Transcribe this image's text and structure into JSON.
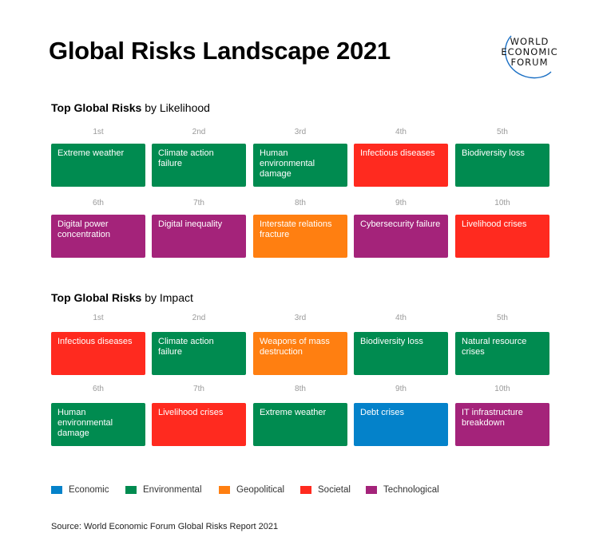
{
  "title": "Global Risks Landscape 2021",
  "logo": {
    "lines": [
      "WORLD",
      "ECONOMIC",
      "FORUM"
    ],
    "arc_color": "#1a6fc4"
  },
  "colors": {
    "Economic": "#0482CA",
    "Environmental": "#008B50",
    "Geopolitical": "#FF7F11",
    "Societal": "#FF2A1F",
    "Technological": "#A4237A"
  },
  "likelihood": {
    "heading_bold": "Top Global Risks",
    "heading_rest": " by Likelihood",
    "items": [
      {
        "rank": "1st",
        "label": "Extreme weather",
        "category": "Environmental"
      },
      {
        "rank": "2nd",
        "label": "Climate action failure",
        "category": "Environmental"
      },
      {
        "rank": "3rd",
        "label": "Human environmental damage",
        "category": "Environmental"
      },
      {
        "rank": "4th",
        "label": "Infectious diseases",
        "category": "Societal"
      },
      {
        "rank": "5th",
        "label": "Biodiversity loss",
        "category": "Environmental"
      },
      {
        "rank": "6th",
        "label": "Digital power concentration",
        "category": "Technological"
      },
      {
        "rank": "7th",
        "label": "Digital inequality",
        "category": "Technological"
      },
      {
        "rank": "8th",
        "label": "Interstate relations fracture",
        "category": "Geopolitical"
      },
      {
        "rank": "9th",
        "label": "Cybersecurity failure",
        "category": "Technological"
      },
      {
        "rank": "10th",
        "label": "Livelihood crises",
        "category": "Societal"
      }
    ]
  },
  "impact": {
    "heading_bold": "Top Global Risks",
    "heading_rest": " by Impact",
    "items": [
      {
        "rank": "1st",
        "label": "Infectious diseases",
        "category": "Societal"
      },
      {
        "rank": "2nd",
        "label": "Climate action failure",
        "category": "Environmental"
      },
      {
        "rank": "3rd",
        "label": "Weapons of mass destruction",
        "category": "Geopolitical"
      },
      {
        "rank": "4th",
        "label": "Biodiversity loss",
        "category": "Environmental"
      },
      {
        "rank": "5th",
        "label": "Natural resource crises",
        "category": "Environmental"
      },
      {
        "rank": "6th",
        "label": "Human environmental damage",
        "category": "Environmental"
      },
      {
        "rank": "7th",
        "label": "Livelihood crises",
        "category": "Societal"
      },
      {
        "rank": "8th",
        "label": "Extreme weather",
        "category": "Environmental"
      },
      {
        "rank": "9th",
        "label": "Debt crises",
        "category": "Economic"
      },
      {
        "rank": "10th",
        "label": "IT infrastructure breakdown",
        "category": "Technological"
      }
    ]
  },
  "legend": [
    {
      "label": "Economic",
      "color": "#0482CA"
    },
    {
      "label": "Environmental",
      "color": "#008B50"
    },
    {
      "label": "Geopolitical",
      "color": "#FF7F11"
    },
    {
      "label": "Societal",
      "color": "#FF2A1F"
    },
    {
      "label": "Technological",
      "color": "#A4237A"
    }
  ],
  "source": "Source: World Economic Forum Global Risks Report 2021"
}
